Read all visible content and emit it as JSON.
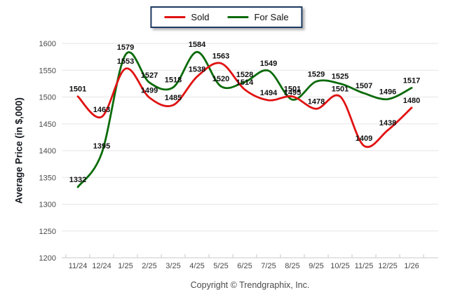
{
  "legend": {
    "items": [
      {
        "label": "Sold",
        "color": "#e01212"
      },
      {
        "label": "For Sale",
        "color": "#0a6b0a"
      }
    ]
  },
  "footer": {
    "copyright": "Copyright © Trendgraphix, Inc."
  },
  "chart_data": {
    "type": "line",
    "title": "",
    "xlabel": "",
    "ylabel": "Average Price (in $,000)",
    "categories": [
      "11/24",
      "12/24",
      "1/25",
      "2/25",
      "3/25",
      "4/25",
      "5/25",
      "6/25",
      "7/25",
      "8/25",
      "9/25",
      "10/25",
      "11/25",
      "12/25",
      "1/26"
    ],
    "series": [
      {
        "name": "Sold",
        "color": "#e01212",
        "values": [
          1501,
          1463,
          1553,
          1499,
          1485,
          1538,
          1563,
          1514,
          1494,
          1501,
          1478,
          1501,
          1409,
          1438,
          1480
        ]
      },
      {
        "name": "For Sale",
        "color": "#0a6b0a",
        "values": [
          1332,
          1395,
          1579,
          1527,
          1518,
          1584,
          1520,
          1528,
          1549,
          1495,
          1529,
          1525,
          1507,
          1496,
          1517
        ]
      }
    ],
    "ylim": [
      1200,
      1600
    ],
    "ytick_step": 50,
    "yticks": [
      1200,
      1250,
      1300,
      1350,
      1400,
      1450,
      1500,
      1550,
      1600
    ],
    "grid": true,
    "point_labels": true,
    "line_style": "smooth",
    "legend_position": "top-center"
  }
}
